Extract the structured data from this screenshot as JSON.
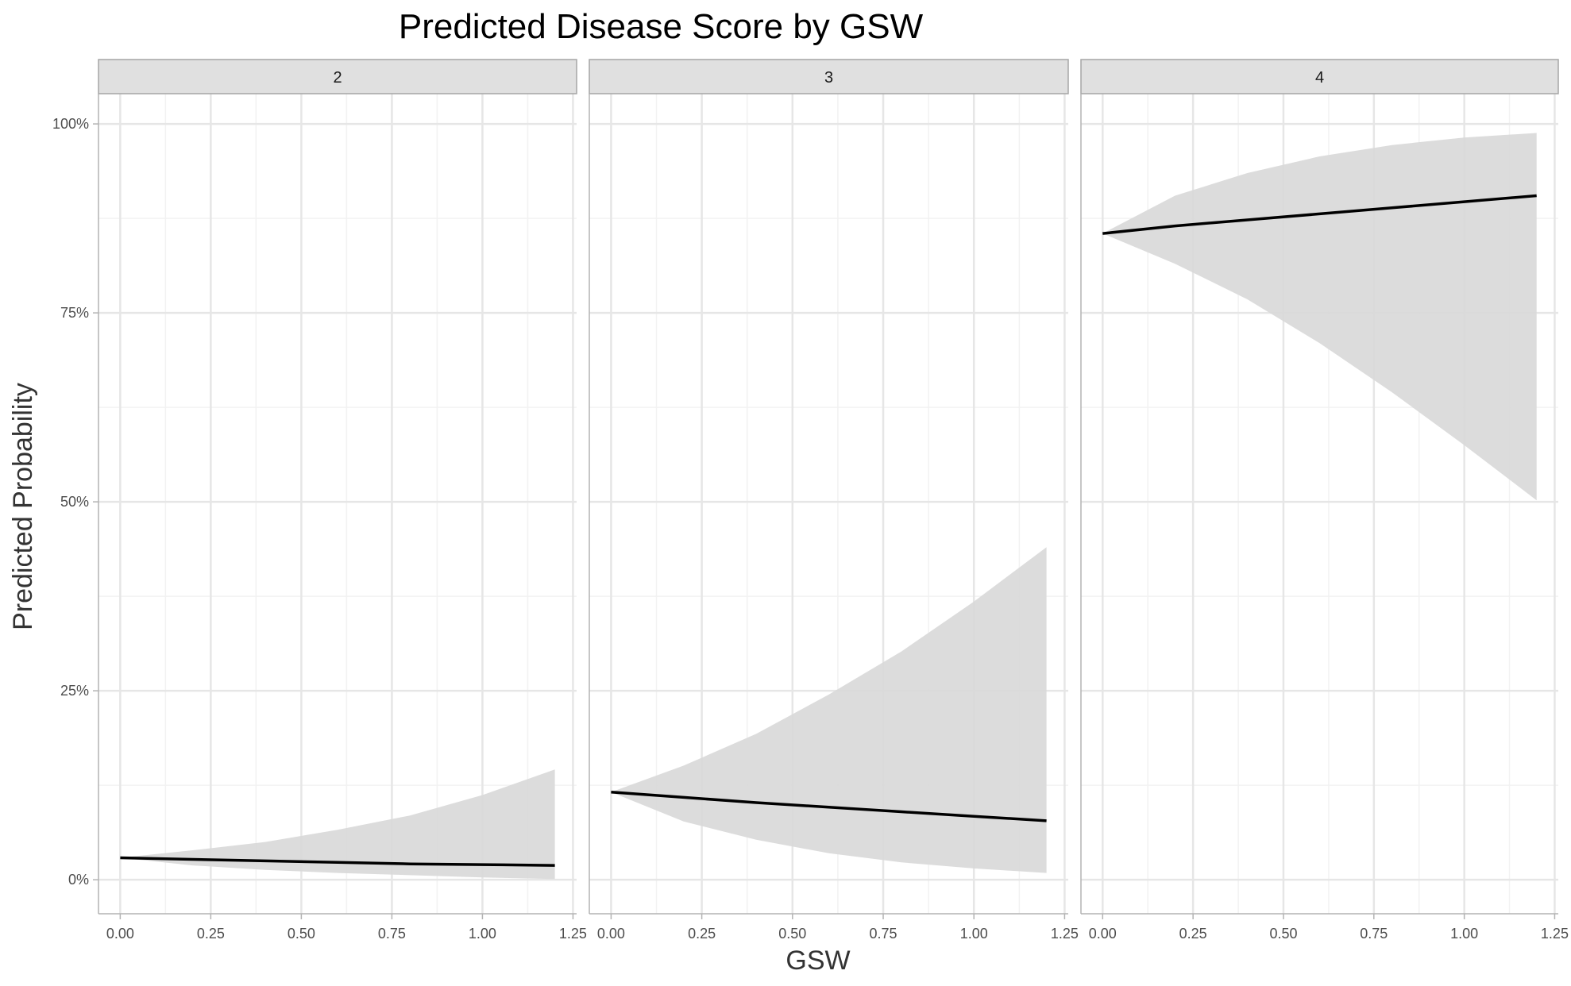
{
  "chart_data": {
    "type": "line",
    "title": "Predicted Disease Score by GSW",
    "xlabel": "GSW",
    "ylabel": "Predicted Probability",
    "xlim": [
      -0.06,
      1.26
    ],
    "ylim": [
      -0.045,
      1.04
    ],
    "x_ticks": [
      0.0,
      0.25,
      0.5,
      0.75,
      1.0,
      1.25
    ],
    "x_tick_labels": [
      "0.00",
      "0.25",
      "0.50",
      "0.75",
      "1.00",
      "1.25"
    ],
    "y_ticks": [
      0,
      0.25,
      0.5,
      0.75,
      1.0
    ],
    "y_tick_labels": [
      "0%",
      "25%",
      "50%",
      "75%",
      "100%"
    ],
    "grid": true,
    "panels": [
      {
        "label": "2",
        "x": [
          0.0,
          0.2,
          0.4,
          0.6,
          0.8,
          1.0,
          1.2
        ],
        "fit": [
          0.029,
          0.027,
          0.025,
          0.023,
          0.021,
          0.02,
          0.019
        ],
        "lower": [
          0.029,
          0.019,
          0.013,
          0.009,
          0.006,
          0.003,
          0.001
        ],
        "upper": [
          0.029,
          0.039,
          0.05,
          0.066,
          0.085,
          0.112,
          0.146
        ]
      },
      {
        "label": "3",
        "x": [
          0.0,
          0.2,
          0.4,
          0.6,
          0.8,
          1.0,
          1.2
        ],
        "fit": [
          0.116,
          0.109,
          0.102,
          0.096,
          0.09,
          0.084,
          0.078
        ],
        "lower": [
          0.116,
          0.077,
          0.053,
          0.035,
          0.023,
          0.015,
          0.009
        ],
        "upper": [
          0.116,
          0.151,
          0.193,
          0.245,
          0.302,
          0.368,
          0.44
        ]
      },
      {
        "label": "4",
        "x": [
          0.0,
          0.2,
          0.4,
          0.6,
          0.8,
          1.0,
          1.2
        ],
        "fit": [
          0.855,
          0.865,
          0.873,
          0.881,
          0.889,
          0.897,
          0.905
        ],
        "lower": [
          0.855,
          0.815,
          0.768,
          0.71,
          0.645,
          0.575,
          0.502
        ],
        "upper": [
          0.855,
          0.905,
          0.935,
          0.957,
          0.972,
          0.982,
          0.988
        ]
      }
    ],
    "colors": {
      "line": "#000000",
      "ribbon": "#d9d9d9",
      "strip_fill": "#e0e0e0",
      "strip_border": "#a6a6a6",
      "grid_major": "#e6e6e6",
      "grid_minor": "#f2f2f2",
      "axis": "#b3b3b3"
    }
  }
}
